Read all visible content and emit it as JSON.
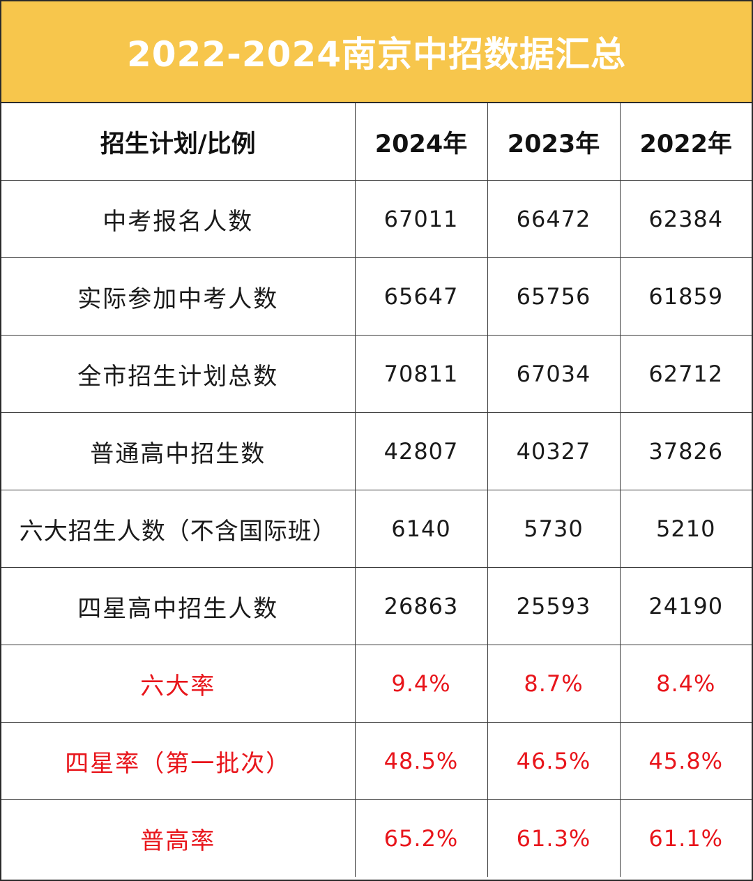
{
  "title": "2022-2024南京中招数据汇总",
  "colors": {
    "title_bar": "#f7c64c",
    "title_text": "#ffffff",
    "rate_text": "#e8151b",
    "normal_text": "#1a1a1a"
  },
  "table": {
    "headers": [
      "招生计划/比例",
      "2024年",
      "2023年",
      "2022年"
    ],
    "rows": [
      {
        "label": "中考报名人数",
        "values": [
          "67011",
          "66472",
          "62384"
        ]
      },
      {
        "label": "实际参加中考人数",
        "values": [
          "65647",
          "65756",
          "61859"
        ]
      },
      {
        "label": "全市招生计划总数",
        "values": [
          "70811",
          "67034",
          "62712"
        ]
      },
      {
        "label": "普通高中招生数",
        "values": [
          "42807",
          "40327",
          "37826"
        ]
      },
      {
        "label": "六大招生人数（不含国际班）",
        "values": [
          "6140",
          "5730",
          "5210"
        ]
      },
      {
        "label": "四星高中招生人数",
        "values": [
          "26863",
          "25593",
          "24190"
        ]
      },
      {
        "label": "六大率",
        "values": [
          "9.4%",
          "8.7%",
          "8.4%"
        ]
      },
      {
        "label": "四星率（第一批次）",
        "values": [
          "48.5%",
          "46.5%",
          "45.8%"
        ]
      },
      {
        "label": "普高率",
        "values": [
          "65.2%",
          "61.3%",
          "61.1%"
        ]
      }
    ]
  }
}
